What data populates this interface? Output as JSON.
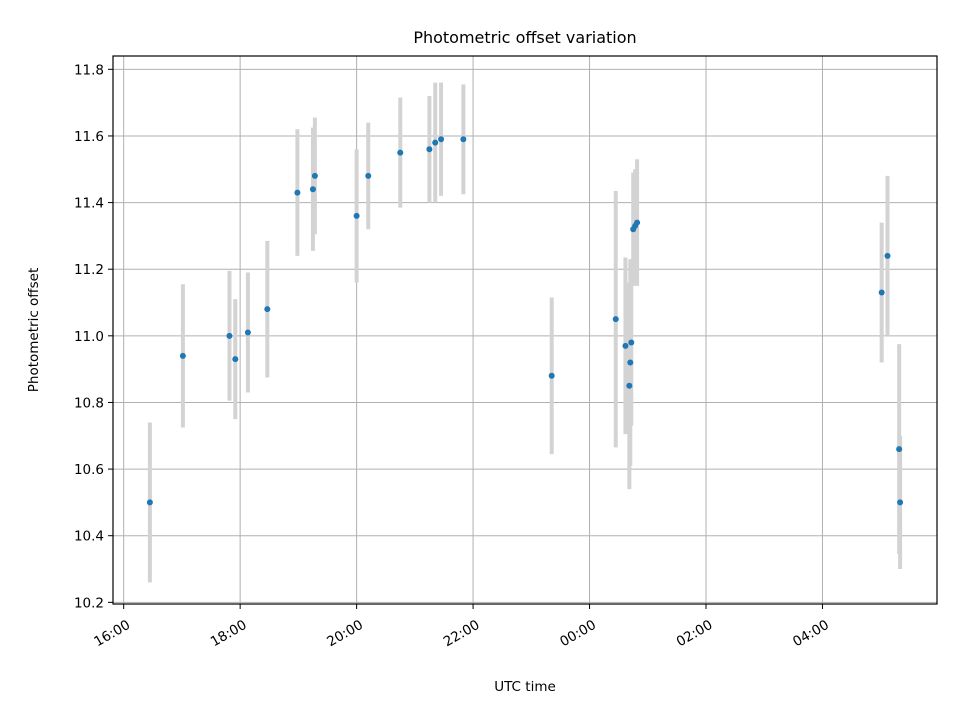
{
  "chart_data": {
    "type": "scatter",
    "title": "Photometric offset variation",
    "xlabel": "UTC time",
    "ylabel": "Photometric offset",
    "grid": true,
    "legend": "none",
    "xlim": [
      "2020-01-01T15:49:00",
      "2020-01-02T05:58:00"
    ],
    "ylim": [
      10.195,
      11.84
    ],
    "x_ticks": [
      {
        "value": "2020-01-01T16:00:00",
        "label": "16:00"
      },
      {
        "value": "2020-01-01T18:00:00",
        "label": "18:00"
      },
      {
        "value": "2020-01-01T20:00:00",
        "label": "20:00"
      },
      {
        "value": "2020-01-01T22:00:00",
        "label": "22:00"
      },
      {
        "value": "2020-01-02T00:00:00",
        "label": "00:00"
      },
      {
        "value": "2020-01-02T02:00:00",
        "label": "02:00"
      },
      {
        "value": "2020-01-02T04:00:00",
        "label": "04:00"
      }
    ],
    "y_ticks": [
      10.2,
      10.4,
      10.6,
      10.8,
      11.0,
      11.2,
      11.4,
      11.6,
      11.8
    ],
    "y_tick_labels": [
      "10.2",
      "10.4",
      "10.6",
      "10.8",
      "11.0",
      "11.2",
      "11.4",
      "11.6",
      "11.8"
    ],
    "marker_color": "#1f77b4",
    "errorbar_color": "#d3d3d3",
    "points": [
      {
        "x": "2020-01-01T16:27:00",
        "y": 10.5,
        "yerr": 0.24
      },
      {
        "x": "2020-01-01T17:01:00",
        "y": 10.94,
        "yerr": 0.215
      },
      {
        "x": "2020-01-01T17:49:00",
        "y": 11.0,
        "yerr": 0.195
      },
      {
        "x": "2020-01-01T17:55:00",
        "y": 10.93,
        "yerr": 0.18
      },
      {
        "x": "2020-01-01T18:08:00",
        "y": 11.01,
        "yerr": 0.18
      },
      {
        "x": "2020-01-01T18:28:00",
        "y": 11.08,
        "yerr": 0.205
      },
      {
        "x": "2020-01-01T18:59:00",
        "y": 11.43,
        "yerr": 0.19
      },
      {
        "x": "2020-01-01T19:15:00",
        "y": 11.44,
        "yerr": 0.185
      },
      {
        "x": "2020-01-01T19:17:00",
        "y": 11.48,
        "yerr": 0.175
      },
      {
        "x": "2020-01-01T20:00:00",
        "y": 11.36,
        "yerr": 0.2
      },
      {
        "x": "2020-01-01T20:12:00",
        "y": 11.48,
        "yerr": 0.16
      },
      {
        "x": "2020-01-01T20:45:00",
        "y": 11.55,
        "yerr": 0.165
      },
      {
        "x": "2020-01-01T21:15:00",
        "y": 11.56,
        "yerr": 0.16
      },
      {
        "x": "2020-01-01T21:21:00",
        "y": 11.58,
        "yerr": 0.18
      },
      {
        "x": "2020-01-01T21:27:00",
        "y": 11.59,
        "yerr": 0.17
      },
      {
        "x": "2020-01-01T21:50:00",
        "y": 11.59,
        "yerr": 0.165
      },
      {
        "x": "2020-01-01T23:21:00",
        "y": 10.88,
        "yerr": 0.235
      },
      {
        "x": "2020-01-02T00:27:00",
        "y": 11.05,
        "yerr": 0.385
      },
      {
        "x": "2020-01-02T00:37:00",
        "y": 10.97,
        "yerr": 0.265
      },
      {
        "x": "2020-01-02T00:41:00",
        "y": 10.85,
        "yerr": 0.31
      },
      {
        "x": "2020-01-02T00:42:00",
        "y": 10.92,
        "yerr": 0.31
      },
      {
        "x": "2020-01-02T00:43:00",
        "y": 10.98,
        "yerr": 0.25
      },
      {
        "x": "2020-01-02T00:45:00",
        "y": 11.32,
        "yerr": 0.17
      },
      {
        "x": "2020-01-02T00:47:00",
        "y": 11.33,
        "yerr": 0.17
      },
      {
        "x": "2020-01-02T00:49:00",
        "y": 11.34,
        "yerr": 0.19
      },
      {
        "x": "2020-01-02T05:01:00",
        "y": 11.13,
        "yerr": 0.21
      },
      {
        "x": "2020-01-02T05:07:00",
        "y": 11.24,
        "yerr": 0.24
      },
      {
        "x": "2020-01-02T05:19:00",
        "y": 10.66,
        "yerr": 0.315
      },
      {
        "x": "2020-01-02T05:20:00",
        "y": 10.5,
        "yerr": 0.2
      }
    ]
  }
}
